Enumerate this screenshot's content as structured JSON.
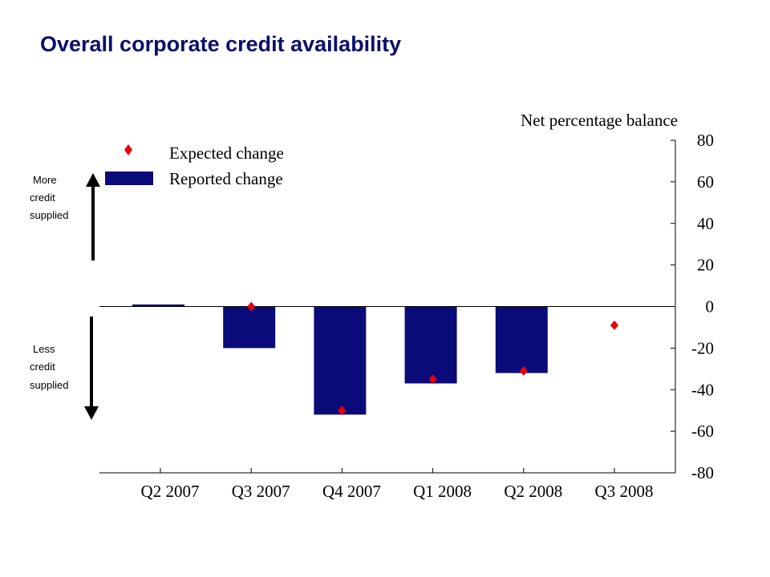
{
  "chart_data": {
    "type": "bar",
    "title": "Overall corporate credit availability",
    "ylabel": "Net percentage balance",
    "categories": [
      "Q2 2007",
      "Q3 2007",
      "Q4 2007",
      "Q1 2008",
      "Q2 2008",
      "Q3 2008"
    ],
    "series": [
      {
        "name": "Reported change",
        "kind": "bar",
        "color": "#0a0a78",
        "values": [
          1,
          -20,
          -52,
          -37,
          -32,
          null
        ]
      },
      {
        "name": "Expected change",
        "kind": "marker",
        "color": "#e8000b",
        "values": [
          null,
          0,
          -50,
          -35,
          -31,
          -9
        ]
      }
    ],
    "ylim": [
      -80,
      80
    ],
    "yticks": [
      "80",
      "60",
      "40",
      "20",
      "0",
      "-20",
      "-40",
      "-60",
      "-80"
    ],
    "y_axis_position": "right",
    "grid": false,
    "legend_position": "top-left",
    "annotations": {
      "more": [
        "More",
        "credit",
        "supplied"
      ],
      "less": [
        "Less",
        "credit",
        "supplied"
      ]
    }
  }
}
